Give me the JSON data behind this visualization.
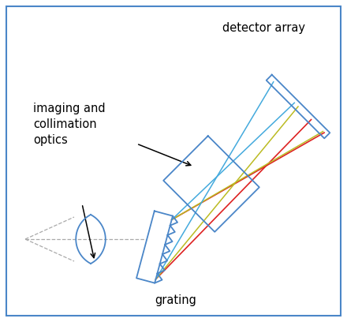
{
  "border_color": "#4a86c8",
  "component_color": "#4a86c8",
  "ray_red": "#dd2222",
  "ray_yellow": "#bbbb22",
  "ray_blue": "#44aadd",
  "label_imaging": "imaging and\ncollimation\noptics",
  "label_detector": "detector array",
  "label_grating": "grating",
  "font_size": 10.5,
  "lw_comp": 1.3,
  "lw_ray": 1.1
}
